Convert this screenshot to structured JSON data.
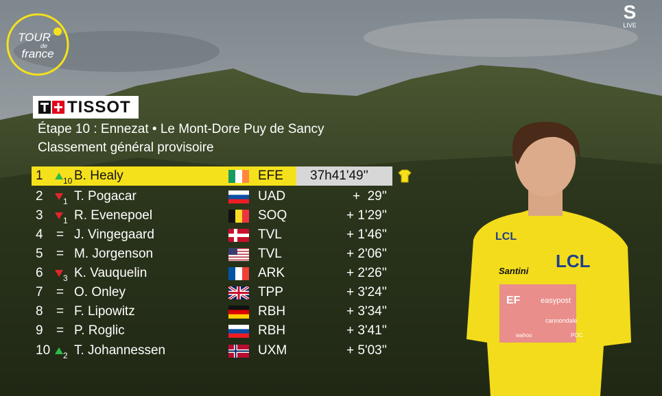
{
  "broadcaster": {
    "logo": "S",
    "badge": "LIVE"
  },
  "event_logo": {
    "line1": "TOUR",
    "line2": "de",
    "line3": "france"
  },
  "sponsor": "TISSOT",
  "stage": "Étape 10 : Ennezat • Le Mont-Dore Puy de Sancy",
  "subtitle": "Classement général provisoire",
  "rows": [
    {
      "rank": "1",
      "movement": "10",
      "direction": "up",
      "rider": "B. Healy",
      "team": "EFE",
      "time": "37h41'49''"
    },
    {
      "rank": "2",
      "movement": "1",
      "direction": "down",
      "rider": "T. Pogacar",
      "team": "UAD",
      "time": "+  29''"
    },
    {
      "rank": "3",
      "movement": "1",
      "direction": "down",
      "rider": "R. Evenepoel",
      "team": "SOQ",
      "time": "+ 1'29''"
    },
    {
      "rank": "4",
      "movement": "=",
      "direction": "same",
      "rider": "J. Vingegaard",
      "team": "TVL",
      "time": "+ 1'46''"
    },
    {
      "rank": "5",
      "movement": "=",
      "direction": "same",
      "rider": "M. Jorgenson",
      "team": "TVL",
      "time": "+ 2'06''"
    },
    {
      "rank": "6",
      "movement": "3",
      "direction": "down",
      "rider": "K. Vauquelin",
      "team": "ARK",
      "time": "+ 2'26''"
    },
    {
      "rank": "7",
      "movement": "=",
      "direction": "same",
      "rider": "O. Onley",
      "team": "TPP",
      "time": "+ 3'24''"
    },
    {
      "rank": "8",
      "movement": "=",
      "direction": "same",
      "rider": "F. Lipowitz",
      "team": "RBH",
      "time": "+ 3'34''"
    },
    {
      "rank": "9",
      "movement": "=",
      "direction": "same",
      "rider": "P. Roglic",
      "team": "RBH",
      "time": "+ 3'41''"
    },
    {
      "rank": "10",
      "movement": "2",
      "direction": "up",
      "rider": "T. Johannessen",
      "team": "UXM",
      "time": "+ 5'03''"
    }
  ],
  "jersey": {
    "sponsor1": "LCL",
    "sponsor2": "Santini",
    "sponsor3": "EF",
    "sponsor4": "easypost",
    "sponsor5": "cannondale",
    "sponsor6": "wahoo",
    "sponsor7": "POC"
  }
}
